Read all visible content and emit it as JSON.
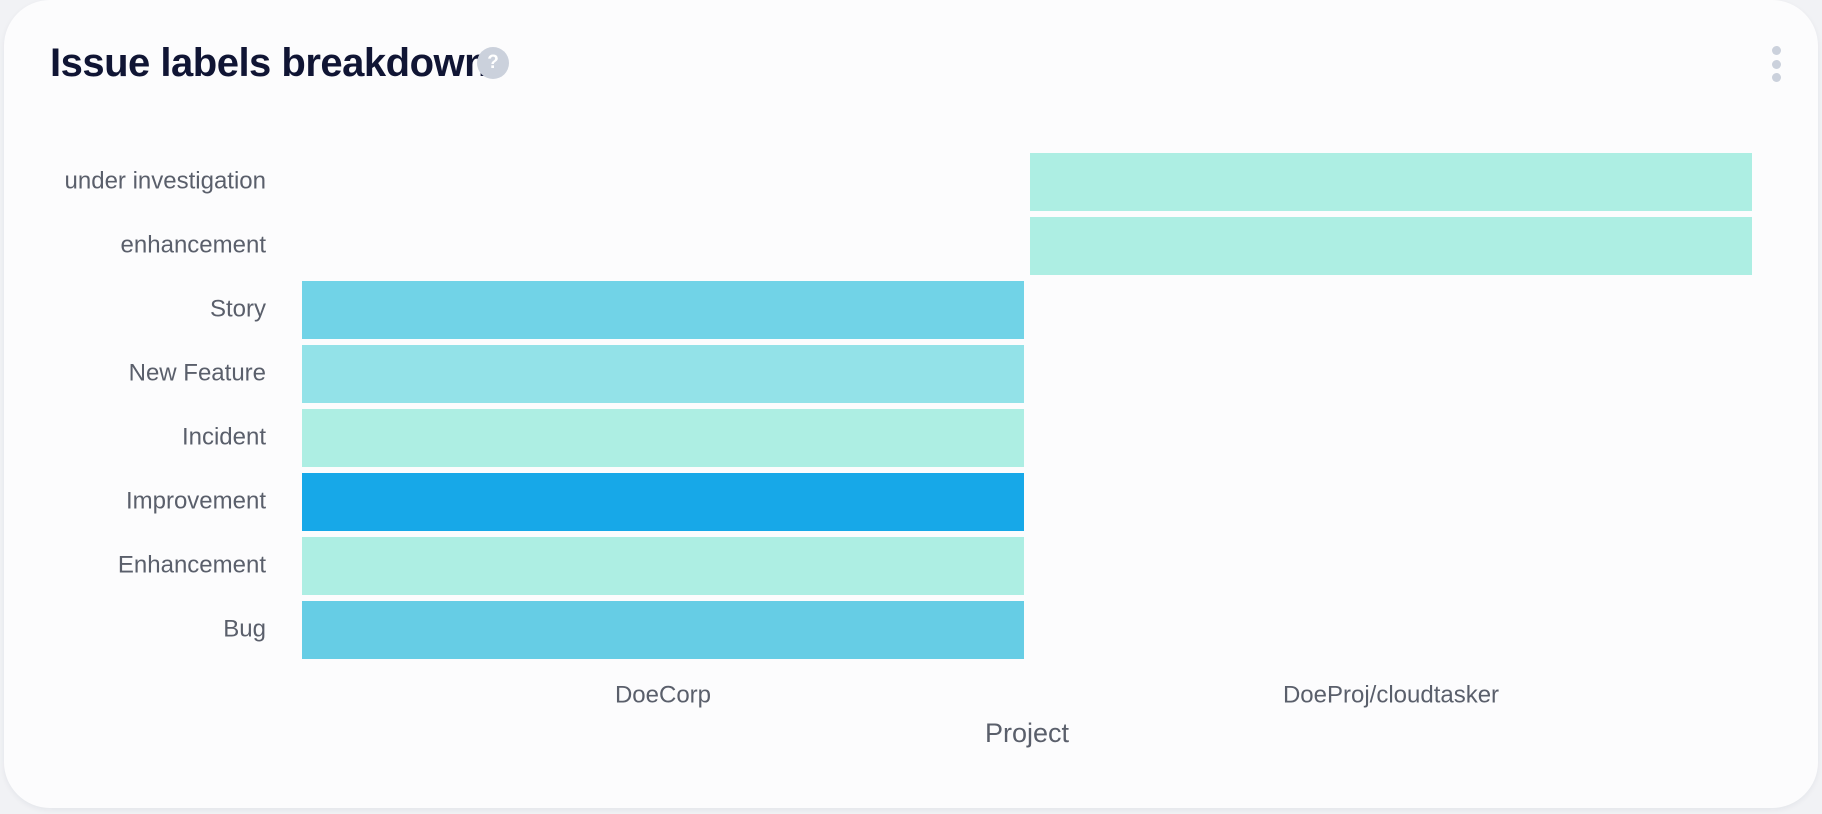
{
  "title": "Issue labels breakdown",
  "help_glyph": "?",
  "menu_icon": "more-vertical-icon",
  "chart_data": {
    "type": "heatmap",
    "title": "Issue labels breakdown",
    "xlabel": "Project",
    "ylabel": "",
    "x_categories": [
      "DoeCorp",
      "DoeProj/cloudtasker"
    ],
    "y_categories": [
      "under investigation",
      "enhancement",
      "Story",
      "New Feature",
      "Incident",
      "Improvement",
      "Enhancement",
      "Bug"
    ],
    "cells": [
      {
        "x": "DoeProj/cloudtasker",
        "y": "under investigation",
        "level": 0.15,
        "color": "#adeee3"
      },
      {
        "x": "DoeProj/cloudtasker",
        "y": "enhancement",
        "level": 0.15,
        "color": "#adeee3"
      },
      {
        "x": "DoeCorp",
        "y": "Story",
        "level": 0.6,
        "color": "#71d3e7"
      },
      {
        "x": "DoeCorp",
        "y": "New Feature",
        "level": 0.35,
        "color": "#93e2e8"
      },
      {
        "x": "DoeCorp",
        "y": "Incident",
        "level": 0.15,
        "color": "#adeee3"
      },
      {
        "x": "DoeCorp",
        "y": "Improvement",
        "level": 1.0,
        "color": "#17a8e8"
      },
      {
        "x": "DoeCorp",
        "y": "Enhancement",
        "level": 0.15,
        "color": "#adeee3"
      },
      {
        "x": "DoeCorp",
        "y": "Bug",
        "level": 0.65,
        "color": "#66cde5"
      }
    ],
    "legend": "none",
    "grid": false
  }
}
